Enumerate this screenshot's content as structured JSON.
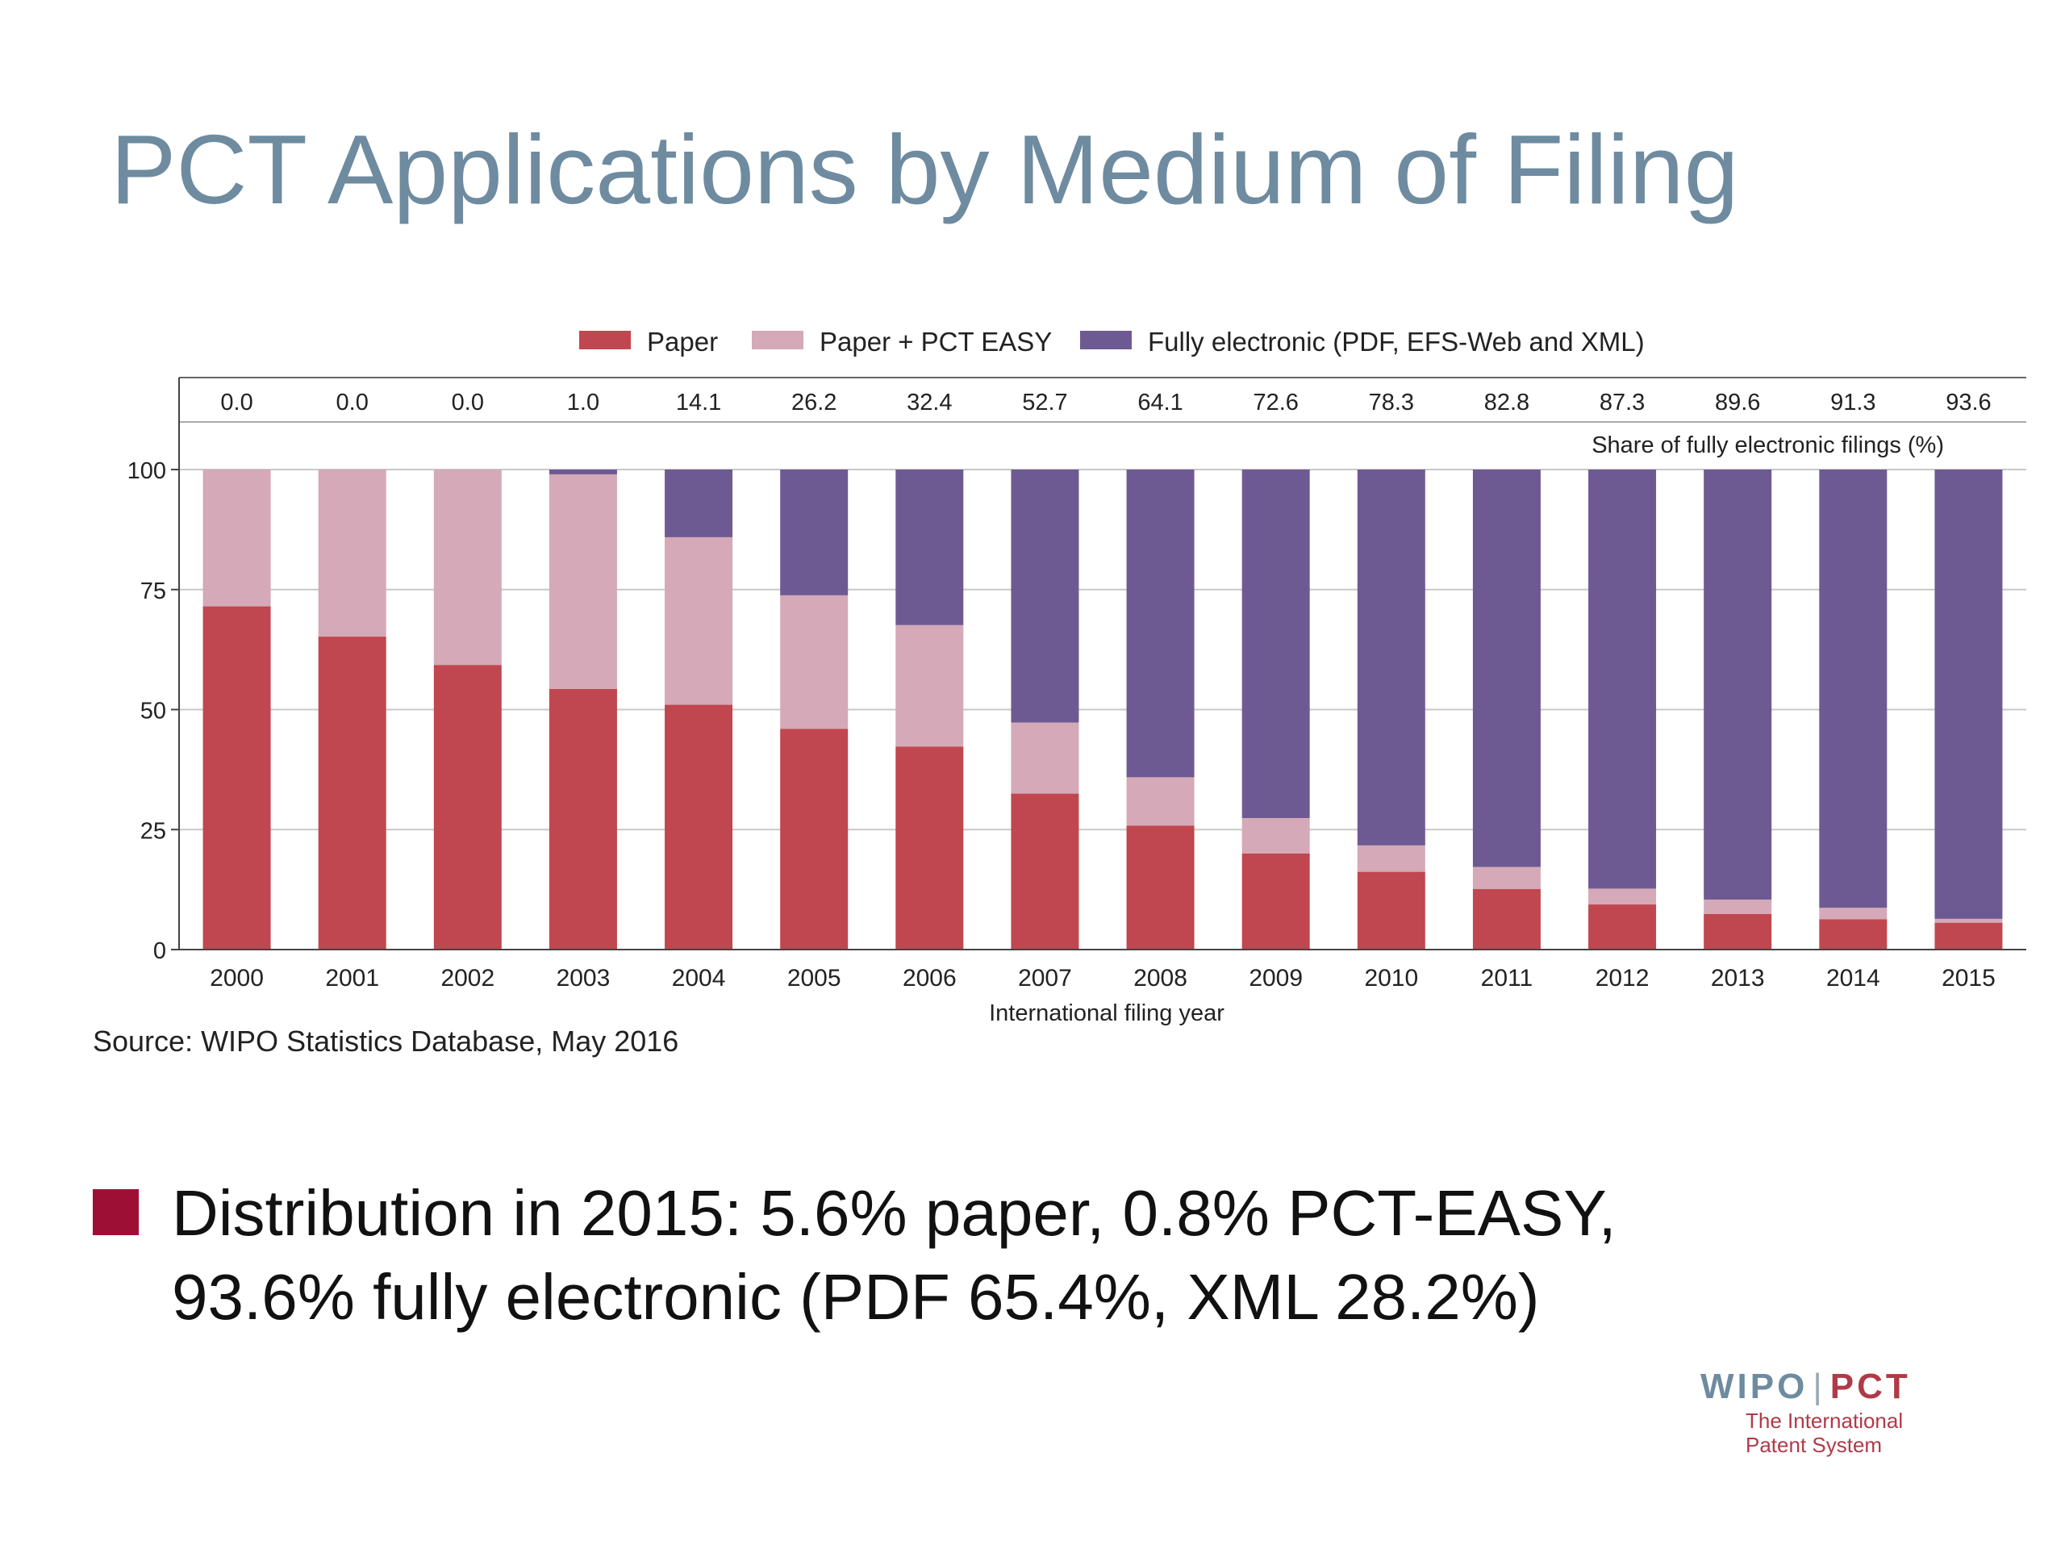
{
  "slide": {
    "title": "PCT Applications by Medium of Filing",
    "source": "Source:  WIPO Statistics Database, May 2016",
    "bullet_lines": [
      "Distribution in 2015:  5.6% paper, 0.8% PCT-EASY,",
      "93.6% fully electronic (PDF 65.4%, XML 28.2%)"
    ],
    "logo": {
      "wipo": "WIPO",
      "separator": "|",
      "pct": "PCT",
      "tagline_lines": [
        "The International",
        "Patent System"
      ]
    }
  },
  "chart_data": {
    "type": "bar",
    "stacked": true,
    "title": "",
    "xlabel": "International filing year",
    "ylabel": "",
    "ylim": [
      0,
      100
    ],
    "yticks": [
      0,
      25,
      50,
      75,
      100
    ],
    "grid": true,
    "legend_position": "top-center",
    "categories": [
      "2000",
      "2001",
      "2002",
      "2003",
      "2004",
      "2005",
      "2006",
      "2007",
      "2008",
      "2009",
      "2010",
      "2011",
      "2012",
      "2013",
      "2014",
      "2015"
    ],
    "series": [
      {
        "name": "Paper",
        "color": "#c0474f",
        "values": [
          71.5,
          65.2,
          59.3,
          54.3,
          51.0,
          46.0,
          42.3,
          32.5,
          25.8,
          20.0,
          16.2,
          12.6,
          9.4,
          7.4,
          6.3,
          5.6
        ]
      },
      {
        "name": "Paper + PCT EASY",
        "color": "#d5a9b7",
        "values": [
          28.5,
          34.8,
          40.7,
          44.7,
          34.9,
          27.8,
          25.3,
          14.8,
          10.1,
          7.4,
          5.5,
          4.6,
          3.3,
          3.0,
          2.4,
          0.8
        ]
      },
      {
        "name": "Fully electronic (PDF, EFS-Web and XML)",
        "color": "#6e5a93",
        "values": [
          0.0,
          0.0,
          0.0,
          1.0,
          14.1,
          26.2,
          32.4,
          52.7,
          64.1,
          72.6,
          78.3,
          82.8,
          87.3,
          89.6,
          91.3,
          93.6
        ]
      }
    ],
    "share_row": {
      "label": "Share of fully electronic filings (%)",
      "values": [
        "0.0",
        "0.0",
        "0.0",
        "1.0",
        "14.1",
        "26.2",
        "32.4",
        "52.7",
        "64.1",
        "72.6",
        "78.3",
        "82.8",
        "87.3",
        "89.6",
        "91.3",
        "93.6"
      ]
    }
  }
}
